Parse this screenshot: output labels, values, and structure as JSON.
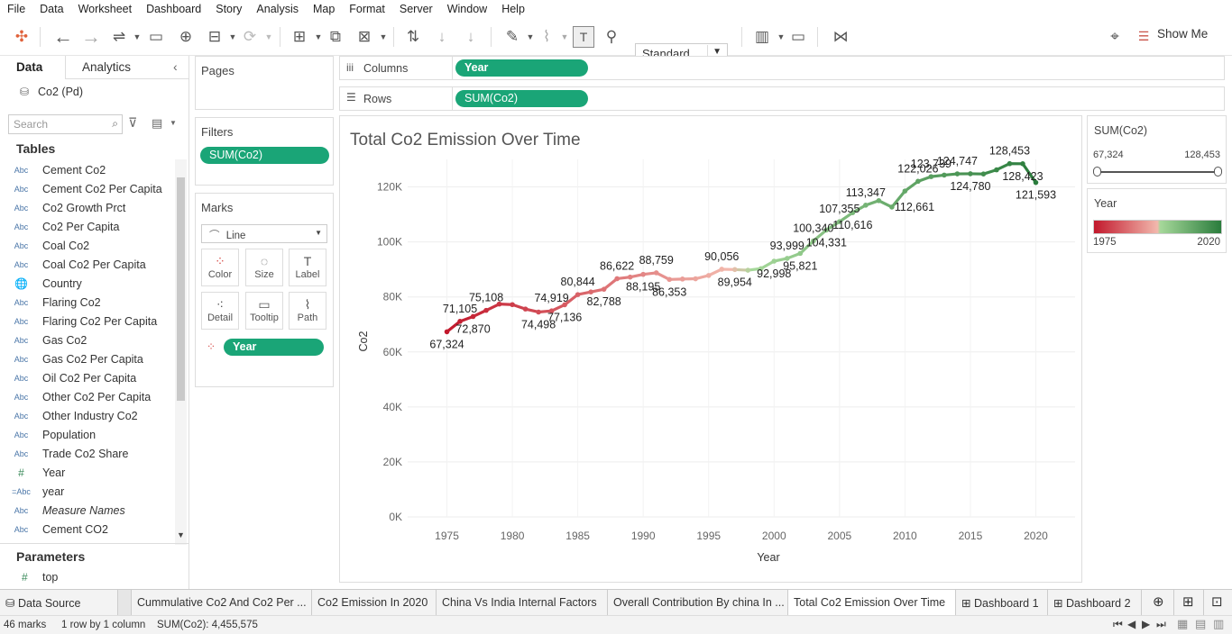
{
  "menu": [
    "File",
    "Data",
    "Worksheet",
    "Dashboard",
    "Story",
    "Analysis",
    "Map",
    "Format",
    "Server",
    "Window",
    "Help"
  ],
  "toolbar": {
    "fit_select": "Standard",
    "show_me": "Show Me"
  },
  "left_panel": {
    "tab_data": "Data",
    "tab_analytics": "Analytics",
    "datasource": "Co2  (Pd)",
    "search_placeholder": "Search",
    "tables_heading": "Tables",
    "fields": [
      {
        "type": "Abc",
        "name": "Cement Co2"
      },
      {
        "type": "Abc",
        "name": "Cement Co2 Per Capita"
      },
      {
        "type": "Abc",
        "name": "Co2 Growth Prct"
      },
      {
        "type": "Abc",
        "name": "Co2 Per Capita"
      },
      {
        "type": "Abc",
        "name": "Coal Co2"
      },
      {
        "type": "Abc",
        "name": "Coal Co2 Per Capita"
      },
      {
        "type": "globe",
        "name": "Country"
      },
      {
        "type": "Abc",
        "name": "Flaring Co2"
      },
      {
        "type": "Abc",
        "name": "Flaring Co2 Per Capita"
      },
      {
        "type": "Abc",
        "name": "Gas Co2"
      },
      {
        "type": "Abc",
        "name": "Gas Co2 Per Capita"
      },
      {
        "type": "Abc",
        "name": "Oil Co2 Per Capita"
      },
      {
        "type": "Abc",
        "name": "Other Co2 Per Capita"
      },
      {
        "type": "Abc",
        "name": "Other Industry Co2"
      },
      {
        "type": "Abc",
        "name": "Population"
      },
      {
        "type": "Abc",
        "name": "Trade Co2 Share"
      },
      {
        "type": "#",
        "name": "Year"
      },
      {
        "type": "=Abc",
        "name": "year"
      },
      {
        "type": "Abc",
        "name": "Measure Names"
      },
      {
        "type": "Abc",
        "name": "Cement CO2"
      }
    ],
    "parameters_heading": "Parameters",
    "parameter": "top"
  },
  "shelves": {
    "pages": "Pages",
    "filters": "Filters",
    "filter_pill": "SUM(Co2)",
    "marks": "Marks",
    "mark_type": "Line",
    "mark_buttons": [
      "Color",
      "Size",
      "Label",
      "Detail",
      "Tooltip",
      "Path"
    ],
    "marks_pill": "Year",
    "columns_label": "Columns",
    "columns_pill": "Year",
    "rows_label": "Rows",
    "rows_pill": "SUM(Co2)"
  },
  "chart_data": {
    "type": "line",
    "title": "Total Co2 Emission Over Time",
    "xlabel": "Year",
    "ylabel": "Co2",
    "xlim": [
      1972,
      2023
    ],
    "ylim": [
      0,
      130000
    ],
    "x_ticks": [
      1975,
      1980,
      1985,
      1990,
      1995,
      2000,
      2005,
      2010,
      2015,
      2020
    ],
    "y_ticks": [
      "0K",
      "20K",
      "40K",
      "60K",
      "80K",
      "100K",
      "120K"
    ],
    "grid": true,
    "color_scale": {
      "low": "#c2182c",
      "mid": "#f2b8ad",
      "high_light": "#a6d89a",
      "high": "#2a7c3c"
    },
    "points": [
      {
        "x": 1975,
        "y": 67324
      },
      {
        "x": 1976,
        "y": 71105
      },
      {
        "x": 1977,
        "y": 72870
      },
      {
        "x": 1978,
        "y": 75108
      },
      {
        "x": 1979,
        "y": 77400
      },
      {
        "x": 1980,
        "y": 77200
      },
      {
        "x": 1981,
        "y": 75600
      },
      {
        "x": 1982,
        "y": 74498
      },
      {
        "x": 1983,
        "y": 74919
      },
      {
        "x": 1984,
        "y": 77136
      },
      {
        "x": 1985,
        "y": 80844
      },
      {
        "x": 1986,
        "y": 81800
      },
      {
        "x": 1987,
        "y": 82788
      },
      {
        "x": 1988,
        "y": 86622
      },
      {
        "x": 1989,
        "y": 87200
      },
      {
        "x": 1990,
        "y": 88195
      },
      {
        "x": 1991,
        "y": 88759
      },
      {
        "x": 1992,
        "y": 86353
      },
      {
        "x": 1993,
        "y": 86500
      },
      {
        "x": 1994,
        "y": 86600
      },
      {
        "x": 1995,
        "y": 87800
      },
      {
        "x": 1996,
        "y": 90056
      },
      {
        "x": 1997,
        "y": 89954
      },
      {
        "x": 1998,
        "y": 89700
      },
      {
        "x": 1999,
        "y": 90300
      },
      {
        "x": 2000,
        "y": 92998
      },
      {
        "x": 2001,
        "y": 93999
      },
      {
        "x": 2002,
        "y": 95821
      },
      {
        "x": 2003,
        "y": 100340
      },
      {
        "x": 2004,
        "y": 104331
      },
      {
        "x": 2005,
        "y": 107355
      },
      {
        "x": 2006,
        "y": 110616
      },
      {
        "x": 2007,
        "y": 113347
      },
      {
        "x": 2008,
        "y": 115000
      },
      {
        "x": 2009,
        "y": 112661
      },
      {
        "x": 2010,
        "y": 118500
      },
      {
        "x": 2011,
        "y": 122026
      },
      {
        "x": 2012,
        "y": 123739
      },
      {
        "x": 2013,
        "y": 124300
      },
      {
        "x": 2014,
        "y": 124747
      },
      {
        "x": 2015,
        "y": 124780
      },
      {
        "x": 2016,
        "y": 124700
      },
      {
        "x": 2017,
        "y": 126200
      },
      {
        "x": 2018,
        "y": 128453
      },
      {
        "x": 2019,
        "y": 128423
      },
      {
        "x": 2020,
        "y": 121593
      }
    ],
    "labels": [
      {
        "x": 1975,
        "text": "67,324",
        "pos": "below"
      },
      {
        "x": 1976,
        "text": "71,105",
        "pos": "above"
      },
      {
        "x": 1977,
        "text": "72,870",
        "pos": "below"
      },
      {
        "x": 1978,
        "text": "75,108",
        "pos": "above"
      },
      {
        "x": 1982,
        "text": "74,498",
        "pos": "below"
      },
      {
        "x": 1983,
        "text": "74,919",
        "pos": "above"
      },
      {
        "x": 1984,
        "text": "77,136",
        "pos": "below"
      },
      {
        "x": 1985,
        "text": "80,844",
        "pos": "above"
      },
      {
        "x": 1987,
        "text": "82,788",
        "pos": "below"
      },
      {
        "x": 1988,
        "text": "86,622",
        "pos": "above"
      },
      {
        "x": 1990,
        "text": "88,195",
        "pos": "below"
      },
      {
        "x": 1991,
        "text": "88,759",
        "pos": "above"
      },
      {
        "x": 1992,
        "text": "86,353",
        "pos": "below"
      },
      {
        "x": 1996,
        "text": "90,056",
        "pos": "above"
      },
      {
        "x": 1997,
        "text": "89,954",
        "pos": "below"
      },
      {
        "x": 2000,
        "text": "92,998",
        "pos": "below"
      },
      {
        "x": 2001,
        "text": "93,999",
        "pos": "above"
      },
      {
        "x": 2002,
        "text": "95,821",
        "pos": "below"
      },
      {
        "x": 2003,
        "text": "100,340",
        "pos": "above"
      },
      {
        "x": 2004,
        "text": "104,331",
        "pos": "below"
      },
      {
        "x": 2005,
        "text": "107,355",
        "pos": "above"
      },
      {
        "x": 2006,
        "text": "110,616",
        "pos": "below"
      },
      {
        "x": 2007,
        "text": "113,347",
        "pos": "above"
      },
      {
        "x": 2009,
        "text": "112,661",
        "pos": "right"
      },
      {
        "x": 2011,
        "text": "122,026",
        "pos": "above"
      },
      {
        "x": 2012,
        "text": "123,739",
        "pos": "above"
      },
      {
        "x": 2014,
        "text": "124,747",
        "pos": "above"
      },
      {
        "x": 2015,
        "text": "124,780",
        "pos": "below"
      },
      {
        "x": 2018,
        "text": "128,453",
        "pos": "above"
      },
      {
        "x": 2019,
        "text": "128,423",
        "pos": "below"
      },
      {
        "x": 2020,
        "text": "121,593",
        "pos": "below"
      }
    ]
  },
  "legend_sum": {
    "title": "SUM(Co2)",
    "min": "67,324",
    "max": "128,453"
  },
  "legend_year": {
    "title": "Year",
    "min": "1975",
    "max": "2020"
  },
  "sheet_tabs": [
    {
      "label": "Data Source",
      "icon": "database-icon"
    },
    {
      "label": "Cummulative Co2 And Co2 Per ..."
    },
    {
      "label": "Co2 Emission In 2020"
    },
    {
      "label": "China Vs India Internal Factors"
    },
    {
      "label": "Overall Contribution By china In ..."
    },
    {
      "label": "Total Co2 Emission Over Time",
      "active": true
    },
    {
      "label": "Dashboard 1",
      "icon": "dashboard-icon"
    },
    {
      "label": "Dashboard 2",
      "icon": "dashboard-icon"
    }
  ],
  "status": {
    "marks": "46 marks",
    "layout": "1 row by 1 column",
    "sum": "SUM(Co2): 4,455,575"
  }
}
